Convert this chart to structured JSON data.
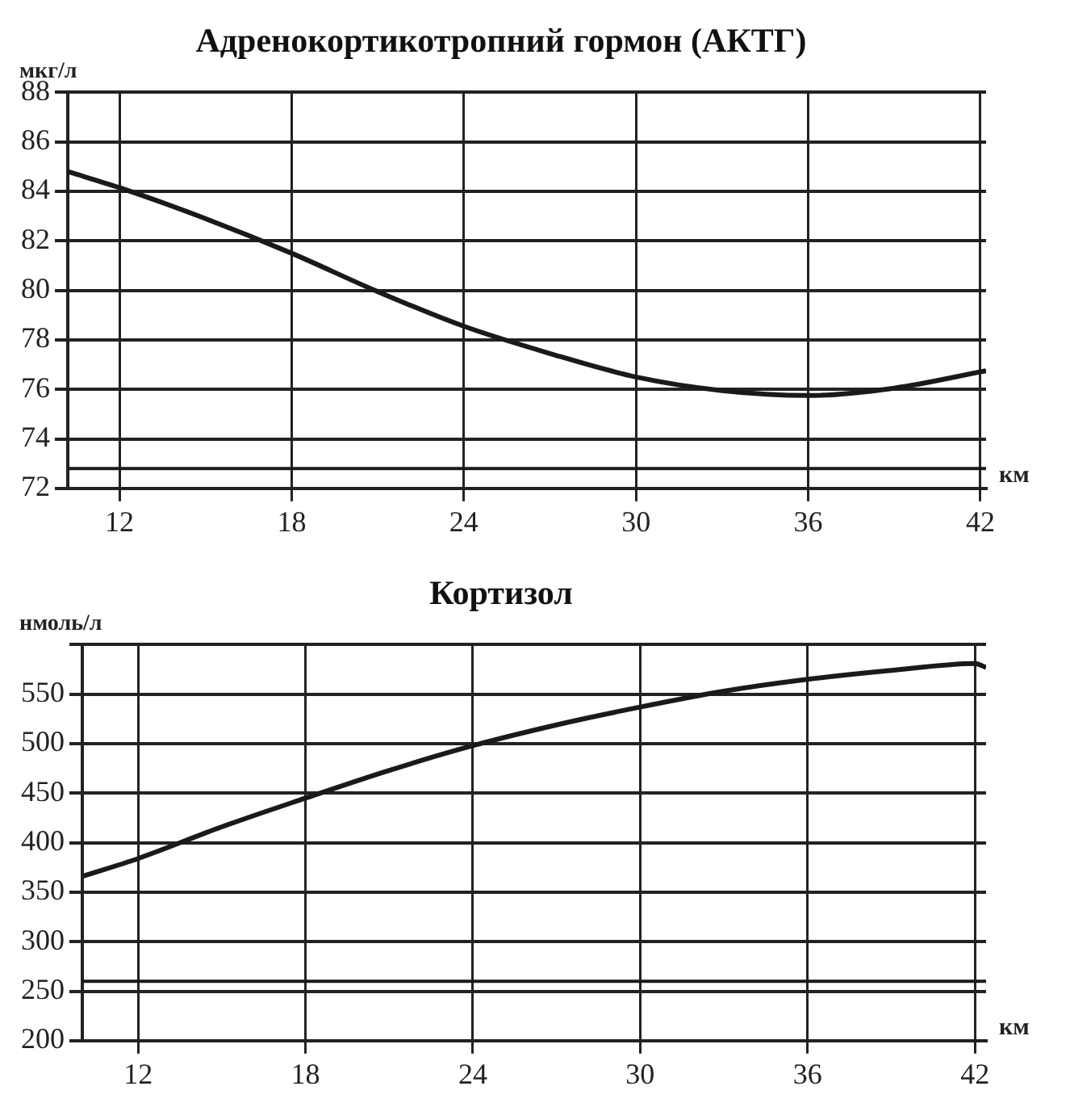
{
  "chart_data": [
    {
      "type": "line",
      "title": "Адренокортикотропний гормон (АКТГ)",
      "ylabel": "мкг/л",
      "xlabel": "км",
      "x": [
        10.2,
        12,
        15,
        18,
        21,
        24,
        27,
        30,
        33,
        36,
        39,
        42.2
      ],
      "series": [
        {
          "color": "#1a1a1a",
          "values": [
            84.8,
            84.15,
            82.9,
            81.5,
            79.95,
            78.55,
            77.45,
            76.5,
            75.95,
            75.75,
            76.05,
            76.75
          ]
        }
      ],
      "xlim": [
        10.2,
        42.2
      ],
      "xticks": [
        12,
        18,
        24,
        30,
        36,
        42
      ],
      "ylim": [
        72,
        88
      ],
      "yticks": [
        72,
        74,
        76,
        78,
        80,
        82,
        84,
        86,
        88
      ],
      "ref_lines": [
        {
          "axis": "y",
          "value": 72.8,
          "color": "#1a1a1a"
        }
      ],
      "grid": true,
      "legend": false,
      "marker": "none",
      "line_style": "solid"
    },
    {
      "type": "line",
      "title": "Кортизол",
      "ylabel": "нмоль/л",
      "xlabel": "км",
      "x": [
        10,
        12,
        15,
        18,
        21,
        24,
        27,
        30,
        33,
        36,
        39,
        42,
        42.4
      ],
      "series": [
        {
          "color": "#1a1a1a",
          "values": [
            366,
            384,
            416,
            445,
            473,
            498,
            519,
            537,
            553,
            565,
            574,
            581,
            577
          ]
        }
      ],
      "xlim": [
        10,
        42.4
      ],
      "xticks": [
        12,
        18,
        24,
        30,
        36,
        42
      ],
      "ylim": [
        200,
        600
      ],
      "yticks": [
        200,
        250,
        300,
        350,
        400,
        450,
        500,
        550,
        {
          "value": 600,
          "label": null
        }
      ],
      "ref_lines": [
        {
          "axis": "y",
          "value": 260,
          "color": "#1a1a1a"
        }
      ],
      "grid": true,
      "legend": false,
      "marker": "none",
      "line_style": "solid"
    }
  ]
}
